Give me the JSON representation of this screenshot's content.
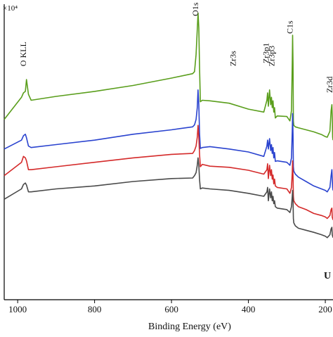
{
  "chart_data": {
    "type": "line",
    "title": "",
    "xlabel": "Binding Energy (eV)",
    "ylabel": "",
    "y_scale_label": "×10⁴",
    "x_reversed": true,
    "xlim": [
      1035,
      180
    ],
    "ylim": [
      0,
      100
    ],
    "x_ticks": [
      1000,
      800,
      600,
      400,
      200
    ],
    "x_tick_labels": [
      "1000",
      "800",
      "600",
      "400",
      "200"
    ],
    "grid": false,
    "legend": "none",
    "truncated_label": "U",
    "peak_labels": [
      {
        "text": "O KLL",
        "x": 978,
        "y": 79
      },
      {
        "text": "O1s",
        "x": 531,
        "y": 96
      },
      {
        "text": "Zr3s",
        "x": 433,
        "y": 79
      },
      {
        "text": "Zr3p1",
        "x": 347,
        "y": 80
      },
      {
        "text": "Zr3p3",
        "x": 333,
        "y": 79
      },
      {
        "text": "C1s",
        "x": 285,
        "y": 90
      },
      {
        "text": "Zr3d",
        "x": 182,
        "y": 70
      }
    ],
    "series": [
      {
        "color": "#5a9e1c",
        "x": [
          1035,
          990,
          985,
          980,
          977,
          972,
          965,
          900,
          800,
          700,
          600,
          545,
          540,
          536,
          533,
          531,
          529,
          527,
          525,
          520,
          500,
          450,
          400,
          360,
          352,
          350,
          348,
          345,
          342,
          340,
          338,
          336,
          334,
          332,
          330,
          325,
          300,
          292,
          288,
          286,
          285,
          284,
          283,
          282,
          278,
          270,
          250,
          230,
          210,
          200,
          195,
          188,
          185,
          183,
          182,
          181,
          180
        ],
        "y": [
          61,
          68.5,
          70,
          70.5,
          74.5,
          69.5,
          67.5,
          68.8,
          70.5,
          72.5,
          75,
          76.5,
          77.2,
          83,
          91.5,
          97,
          92,
          78,
          67,
          67.5,
          67.3,
          66.5,
          64.5,
          63.5,
          67.5,
          70,
          65.5,
          71,
          66,
          68.5,
          65,
          67.3,
          63.5,
          65,
          61.5,
          62.2,
          62,
          60.5,
          64,
          80,
          89.5,
          80,
          60.5,
          59,
          58.5,
          58.2,
          57.5,
          56.8,
          55.9,
          55.2,
          55,
          57,
          64,
          66,
          62,
          55,
          54
        ]
      },
      {
        "color": "#2a43cf",
        "x": [
          1035,
          990,
          985,
          980,
          977,
          972,
          965,
          900,
          800,
          700,
          600,
          545,
          540,
          536,
          533,
          531,
          529,
          527,
          525,
          520,
          500,
          450,
          400,
          360,
          352,
          350,
          348,
          345,
          342,
          340,
          338,
          336,
          334,
          332,
          330,
          325,
          300,
          292,
          288,
          286,
          285,
          284,
          283,
          282,
          278,
          270,
          250,
          230,
          210,
          200,
          195,
          188,
          185,
          183,
          182,
          181,
          180
        ],
        "y": [
          51,
          54,
          55.5,
          56,
          54.8,
          52,
          51.5,
          52.5,
          54,
          56,
          57.5,
          58.5,
          59.2,
          61,
          65,
          71,
          66,
          56,
          51.2,
          51.5,
          51.8,
          51,
          50,
          48.5,
          52,
          54,
          51,
          54.5,
          50.5,
          52.5,
          49.5,
          51.5,
          48,
          49.8,
          46.8,
          47,
          46.5,
          45.5,
          48,
          57,
          63,
          56,
          45,
          43.5,
          42.5,
          41.5,
          40,
          38.5,
          37.5,
          37,
          36.5,
          38,
          42,
          44,
          41,
          38,
          37
        ]
      },
      {
        "color": "#d42a2a",
        "x": [
          1035,
          990,
          985,
          980,
          977,
          972,
          965,
          900,
          800,
          700,
          600,
          545,
          540,
          536,
          533,
          531,
          529,
          527,
          525,
          520,
          500,
          450,
          400,
          360,
          352,
          350,
          348,
          345,
          342,
          340,
          338,
          336,
          334,
          332,
          330,
          325,
          300,
          292,
          288,
          286,
          285,
          284,
          283,
          282,
          278,
          270,
          250,
          230,
          210,
          200,
          195,
          188,
          185,
          183,
          182,
          181,
          180
        ],
        "y": [
          42,
          46.5,
          48.5,
          48,
          47,
          44,
          44,
          45,
          46.5,
          48,
          49.2,
          49.5,
          50.5,
          52,
          55,
          59,
          55,
          49,
          45,
          45.8,
          45.2,
          44.8,
          43.8,
          42.5,
          44,
          46,
          41,
          45.5,
          42,
          44,
          40.8,
          42.2,
          39.2,
          40.8,
          38.5,
          38,
          37.5,
          36,
          38,
          43,
          47,
          42,
          35,
          33.5,
          32.5,
          31.5,
          30.5,
          29.2,
          28.5,
          28,
          27.5,
          28.5,
          30.5,
          31,
          28,
          27.5,
          27
        ]
      },
      {
        "color": "#4a4a4a",
        "x": [
          1035,
          990,
          985,
          980,
          977,
          972,
          965,
          900,
          800,
          700,
          600,
          545,
          540,
          536,
          533,
          531,
          529,
          527,
          525,
          520,
          500,
          450,
          400,
          360,
          352,
          350,
          348,
          345,
          342,
          340,
          338,
          336,
          334,
          332,
          330,
          325,
          300,
          292,
          288,
          286,
          285,
          284,
          283,
          282,
          278,
          270,
          250,
          230,
          210,
          200,
          195,
          188,
          185,
          183,
          182,
          181,
          180
        ],
        "y": [
          34,
          37.5,
          39,
          39.5,
          38.8,
          36.5,
          36.5,
          37.5,
          38.5,
          40,
          41,
          41.2,
          42,
          43,
          45.5,
          48,
          45.5,
          40.5,
          37.5,
          37.8,
          37.5,
          37,
          36,
          35,
          36.5,
          38,
          33.5,
          37.5,
          34.5,
          36.5,
          33.5,
          35,
          32.5,
          33.5,
          31.5,
          31,
          30.5,
          29.5,
          31.5,
          35,
          37,
          34,
          27.5,
          26,
          25,
          24.2,
          23.5,
          22.8,
          22,
          21.5,
          21,
          22,
          24,
          24.5,
          22,
          21.5,
          21
        ]
      }
    ]
  }
}
